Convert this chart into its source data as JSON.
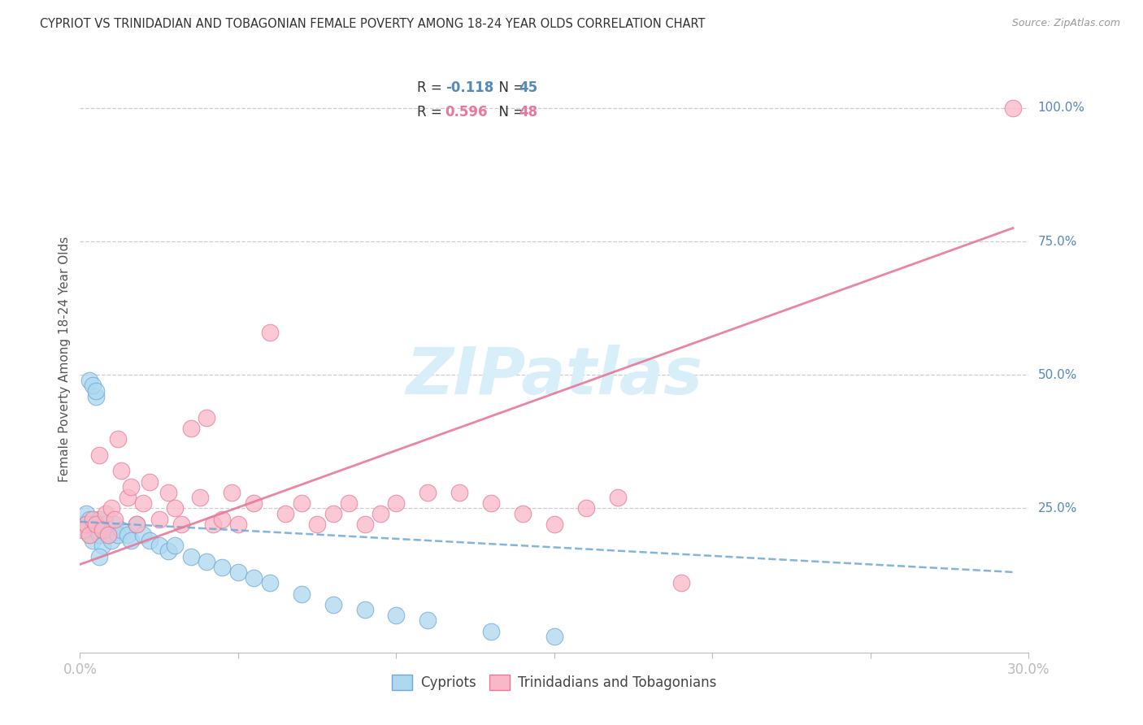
{
  "title": "CYPRIOT VS TRINIDADIAN AND TOBAGONIAN FEMALE POVERTY AMONG 18-24 YEAR OLDS CORRELATION CHART",
  "source": "Source: ZipAtlas.com",
  "ylabel": "Female Poverty Among 18-24 Year Olds",
  "legend1_label": "Cypriots",
  "legend2_label": "Trinidadians and Tobagonians",
  "R1": -0.118,
  "N1": 45,
  "R2": 0.596,
  "N2": 48,
  "color_blue_fill": "#ADD8F0",
  "color_blue_edge": "#6CA8D8",
  "color_pink_fill": "#F9B8C8",
  "color_pink_edge": "#E87898",
  "color_line_blue": "#6CA8D8",
  "color_line_pink": "#E87898",
  "color_watermark": "#D8EEF8",
  "xmin": 0.0,
  "xmax": 0.3,
  "ymin": -0.02,
  "ymax": 1.08,
  "cypriot_x": [
    0.001,
    0.002,
    0.002,
    0.003,
    0.003,
    0.004,
    0.004,
    0.005,
    0.005,
    0.006,
    0.006,
    0.007,
    0.007,
    0.008,
    0.009,
    0.01,
    0.01,
    0.011,
    0.012,
    0.013,
    0.015,
    0.016,
    0.018,
    0.02,
    0.022,
    0.025,
    0.028,
    0.03,
    0.035,
    0.04,
    0.045,
    0.05,
    0.055,
    0.06,
    0.07,
    0.08,
    0.09,
    0.1,
    0.11,
    0.13,
    0.003,
    0.004,
    0.005,
    0.006,
    0.15
  ],
  "cypriot_y": [
    0.22,
    0.21,
    0.24,
    0.2,
    0.23,
    0.22,
    0.19,
    0.21,
    0.46,
    0.2,
    0.23,
    0.21,
    0.18,
    0.22,
    0.2,
    0.21,
    0.19,
    0.22,
    0.2,
    0.21,
    0.2,
    0.19,
    0.22,
    0.2,
    0.19,
    0.18,
    0.17,
    0.18,
    0.16,
    0.15,
    0.14,
    0.13,
    0.12,
    0.11,
    0.09,
    0.07,
    0.06,
    0.05,
    0.04,
    0.02,
    0.49,
    0.48,
    0.47,
    0.16,
    0.01
  ],
  "trinidadian_x": [
    0.001,
    0.002,
    0.003,
    0.004,
    0.005,
    0.006,
    0.007,
    0.008,
    0.009,
    0.01,
    0.011,
    0.012,
    0.013,
    0.015,
    0.016,
    0.018,
    0.02,
    0.022,
    0.025,
    0.028,
    0.03,
    0.032,
    0.035,
    0.038,
    0.04,
    0.042,
    0.045,
    0.048,
    0.05,
    0.055,
    0.06,
    0.065,
    0.07,
    0.075,
    0.08,
    0.085,
    0.09,
    0.095,
    0.1,
    0.11,
    0.12,
    0.13,
    0.14,
    0.15,
    0.16,
    0.17,
    0.19,
    0.295
  ],
  "trinidadian_y": [
    0.21,
    0.22,
    0.2,
    0.23,
    0.22,
    0.35,
    0.21,
    0.24,
    0.2,
    0.25,
    0.23,
    0.38,
    0.32,
    0.27,
    0.29,
    0.22,
    0.26,
    0.3,
    0.23,
    0.28,
    0.25,
    0.22,
    0.4,
    0.27,
    0.42,
    0.22,
    0.23,
    0.28,
    0.22,
    0.26,
    0.58,
    0.24,
    0.26,
    0.22,
    0.24,
    0.26,
    0.22,
    0.24,
    0.26,
    0.28,
    0.28,
    0.26,
    0.24,
    0.22,
    0.25,
    0.27,
    0.11,
    1.0
  ]
}
